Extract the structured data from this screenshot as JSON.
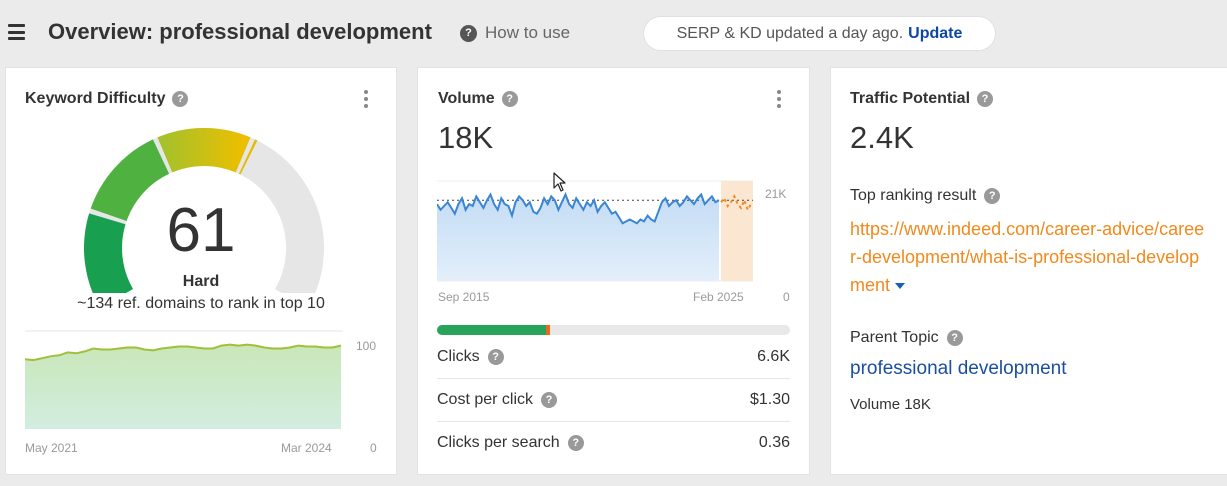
{
  "header": {
    "title": "Overview: professional development",
    "how_to_use": "How to use",
    "serp_status": "SERP & KD updated a day ago.",
    "update_label": "Update"
  },
  "kd_card": {
    "title": "Keyword Difficulty",
    "score": "61",
    "level": "Hard",
    "description": "~134 ref. domains to rank in top 10",
    "gauge_value": 61,
    "chart": {
      "y_max_label": "100",
      "y_min_label": "0",
      "x_start_label": "May 2021",
      "x_end_label": "Mar 2024"
    }
  },
  "volume_card": {
    "title": "Volume",
    "value": "18K",
    "chart": {
      "y_top_label": "21K",
      "y_bottom_label": "0",
      "x_start_label": "Sep 2015",
      "x_end_label": "Feb 2025"
    },
    "clicks_share": 0.31,
    "metrics": [
      {
        "label": "Clicks",
        "value": "6.6K"
      },
      {
        "label": "Cost per click",
        "value": "$1.30"
      },
      {
        "label": "Clicks per search",
        "value": "0.36"
      }
    ]
  },
  "tp_card": {
    "title": "Traffic Potential",
    "value": "2.4K",
    "top_result_label": "Top ranking result",
    "top_result_url": "https://www.indeed.com/career-advice/career-development/what-is-professional-development",
    "parent_topic_label": "Parent Topic",
    "parent_topic": "professional development",
    "parent_volume": "Volume 18K"
  },
  "colors": {
    "accent_green": "#27a35a",
    "accent_orange": "#f08a1c",
    "link_blue": "#1a4fa0",
    "chart_line": "#3a86d4"
  },
  "chart_data": [
    {
      "type": "area",
      "ylim": [
        0,
        100
      ],
      "x_range": [
        "May 2021",
        "Mar 2024"
      ],
      "values": [
        72,
        71,
        73,
        75,
        76,
        79,
        78,
        80,
        83,
        82,
        82,
        83,
        84,
        84,
        82,
        81,
        83,
        84,
        85,
        85,
        84,
        83,
        83,
        86,
        87,
        86,
        87,
        86,
        84,
        83,
        83,
        84,
        86,
        85,
        85,
        84,
        84,
        86
      ]
    },
    {
      "type": "line",
      "ylabel": "",
      "x_range": [
        "Sep 2015",
        "Feb 2025"
      ],
      "reference_line": 21000,
      "values": [
        20000,
        18500,
        19500,
        20500,
        19000,
        17500,
        20000,
        21500,
        18500,
        20000,
        19500,
        22000,
        20500,
        19000,
        21000,
        22500,
        20000,
        18500,
        21500,
        20000,
        19500,
        17000,
        20500,
        22000,
        21000,
        19500,
        20500,
        18000,
        17500,
        19000,
        21500,
        20000,
        22000,
        21000,
        18500,
        20500,
        22500,
        20000,
        19000,
        21500,
        20000,
        18500,
        20500,
        19500,
        21000,
        18000,
        19500,
        20500,
        19000,
        17500,
        18000,
        16500,
        15000,
        15500,
        16000,
        15500,
        15000,
        16000,
        15500,
        17000,
        16000,
        15500,
        18000,
        20500,
        21500,
        19500,
        20500,
        21000,
        19500,
        20500,
        22000,
        21000,
        20000,
        21500,
        22500,
        20000,
        21000,
        22000,
        20500,
        21000
      ],
      "forecast": [
        20500,
        21500,
        19500,
        20500,
        22000,
        20000,
        19000,
        21000,
        18500,
        20000
      ]
    }
  ]
}
